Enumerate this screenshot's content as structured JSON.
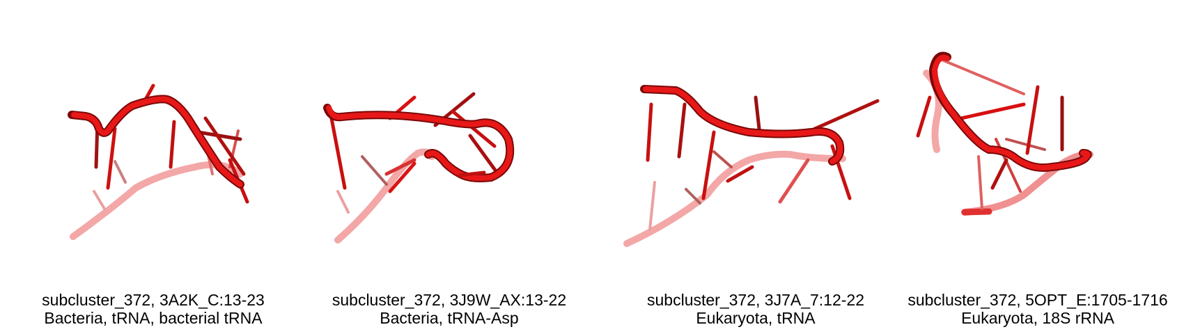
{
  "panels": [
    {
      "line1": "subcluster_372, 3A2K_C:13-23",
      "line2": "Bacteria, tRNA, bacterial tRNA"
    },
    {
      "line1": "subcluster_372, 3J9W_AX:13-22",
      "line2": "Bacteria, tRNA-Asp"
    },
    {
      "line1": "subcluster_372, 3J7A_7:12-22",
      "line2": "Eukaryota, tRNA"
    },
    {
      "line1": "subcluster_372, 5OPT_E:1705-1716",
      "line2": "Eukaryota, 18S rRNA"
    }
  ],
  "colors": {
    "strand_front": "#e81818",
    "strand_dark": "#8a0a0a",
    "strand_back": "#f29a9a"
  }
}
